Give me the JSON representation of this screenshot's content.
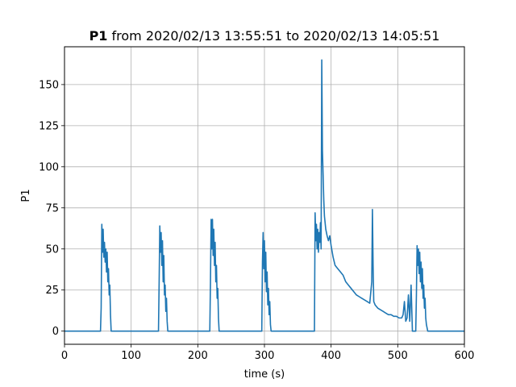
{
  "chart_data": {
    "type": "line",
    "title": {
      "bold": "P1",
      "rest": " from 2020/02/13 13:55:51 to 2020/02/13 14:05:51"
    },
    "xlabel": "time (s)",
    "ylabel": "P1",
    "xlim": [
      0,
      600
    ],
    "ylim": [
      -8,
      173
    ],
    "xticks": [
      0,
      100,
      200,
      300,
      400,
      500,
      600
    ],
    "yticks": [
      0,
      25,
      50,
      75,
      100,
      125,
      150
    ],
    "grid": true,
    "line_color": "#1f77b4",
    "series": [
      {
        "x": [
          0,
          54,
          55,
          56,
          57,
          58,
          59,
          60,
          61,
          62,
          63,
          64,
          65,
          66,
          67,
          68,
          69,
          70,
          75,
          139,
          141,
          142,
          143,
          144,
          145,
          146,
          147,
          148,
          149,
          150,
          151,
          152,
          153,
          154,
          155,
          160,
          216,
          218,
          219,
          220,
          221,
          222,
          223,
          224,
          225,
          226,
          227,
          228,
          229,
          230,
          231,
          232,
          240,
          294,
          296,
          297,
          298,
          299,
          300,
          301,
          302,
          303,
          304,
          305,
          306,
          307,
          308,
          309,
          310,
          315,
          373,
          375,
          376,
          377,
          378,
          379,
          380,
          381,
          382,
          383,
          384,
          385,
          386,
          387,
          388,
          389,
          390,
          392,
          394,
          396,
          398,
          400,
          403,
          406,
          410,
          414,
          418,
          422,
          426,
          430,
          434,
          438,
          442,
          446,
          450,
          454,
          458,
          461,
          462,
          463,
          464,
          466,
          470,
          474,
          478,
          482,
          486,
          490,
          494,
          498,
          502,
          506,
          508,
          510,
          512,
          514,
          516,
          518,
          520,
          522,
          524,
          526,
          527,
          528,
          529,
          530,
          531,
          532,
          533,
          534,
          535,
          536,
          537,
          538,
          539,
          540,
          541,
          542,
          543,
          545,
          550,
          600
        ],
        "y": [
          0,
          0,
          14,
          65,
          48,
          62,
          45,
          54,
          42,
          50,
          36,
          48,
          30,
          38,
          22,
          28,
          10,
          0,
          0,
          0,
          0,
          30,
          64,
          48,
          60,
          40,
          55,
          30,
          46,
          22,
          28,
          12,
          20,
          6,
          0,
          0,
          0,
          0,
          30,
          68,
          50,
          68,
          46,
          62,
          40,
          54,
          30,
          40,
          20,
          26,
          8,
          0,
          0,
          0,
          0,
          42,
          60,
          38,
          55,
          30,
          48,
          24,
          36,
          16,
          26,
          10,
          18,
          4,
          0,
          0,
          0,
          0,
          72,
          55,
          65,
          50,
          62,
          48,
          60,
          54,
          66,
          50,
          165,
          110,
          95,
          80,
          70,
          62,
          58,
          55,
          58,
          52,
          45,
          40,
          38,
          36,
          34,
          30,
          28,
          26,
          24,
          22,
          21,
          20,
          19,
          18,
          17,
          30,
          74,
          40,
          18,
          16,
          14,
          13,
          12,
          11,
          10,
          10,
          9,
          9,
          8,
          8,
          10,
          18,
          6,
          8,
          22,
          6,
          28,
          0,
          0,
          0,
          0,
          22,
          52,
          40,
          50,
          35,
          48,
          30,
          42,
          26,
          38,
          20,
          28,
          14,
          20,
          8,
          4,
          0,
          0,
          0
        ]
      }
    ]
  }
}
